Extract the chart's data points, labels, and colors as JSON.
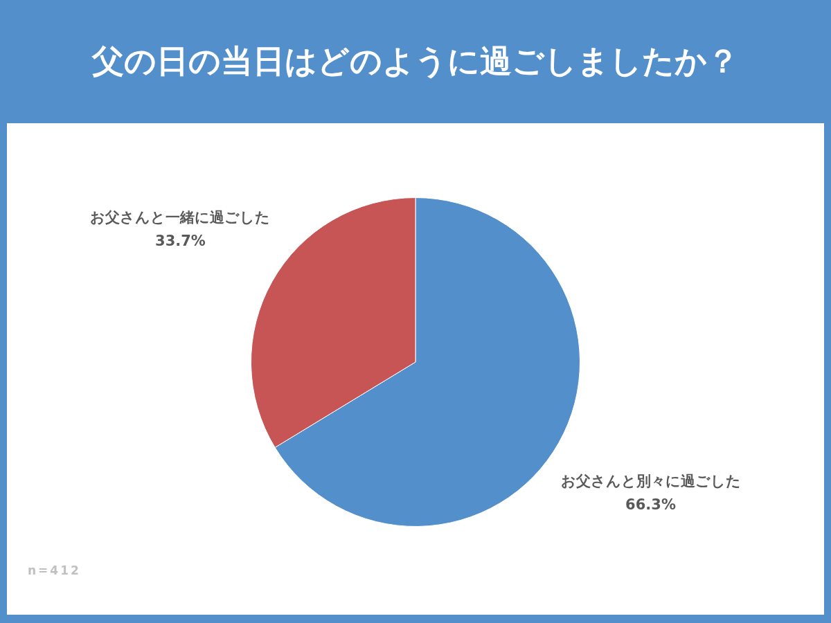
{
  "chart_data": {
    "type": "pie",
    "title": "父の日の当日はどのように過ごしましたか？",
    "categories": [
      "お父さんと別々に過ごした",
      "お父さんと一緒に過ごした"
    ],
    "values": [
      66.3,
      33.7
    ],
    "value_labels": [
      "66.3%",
      "33.7%"
    ],
    "colors": [
      "#528fcb",
      "#c85555"
    ],
    "annotations": [
      "n=412"
    ]
  }
}
